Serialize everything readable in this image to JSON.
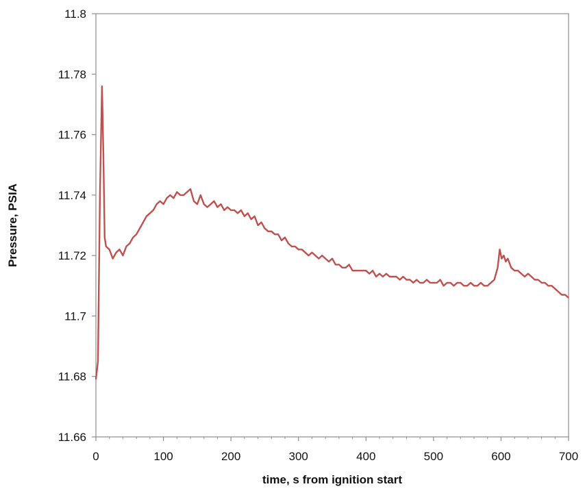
{
  "chart_data": {
    "type": "line",
    "title": "",
    "xlabel": "time, s from ignition start",
    "ylabel": "Pressure, PSIA",
    "xlim": [
      0,
      700
    ],
    "ylim": [
      11.66,
      11.8
    ],
    "x_ticks": [
      0,
      100,
      200,
      300,
      400,
      500,
      600,
      700
    ],
    "x_tick_labels": [
      "0",
      "100",
      "200",
      "300",
      "400",
      "500",
      "600",
      "700"
    ],
    "y_ticks": [
      11.66,
      11.68,
      11.7,
      11.72,
      11.74,
      11.76,
      11.78,
      11.8
    ],
    "y_tick_labels": [
      "11.66",
      "11.68",
      "11.7",
      "11.72",
      "11.74",
      "11.76",
      "11.78",
      "11.8"
    ],
    "grid": false,
    "legend": "none",
    "line_color": "#c0504d",
    "series": [
      {
        "x": [
          0,
          3,
          6,
          9,
          11,
          13,
          15,
          20,
          25,
          30,
          35,
          40,
          45,
          50,
          55,
          60,
          65,
          70,
          75,
          80,
          85,
          90,
          95,
          100,
          105,
          110,
          115,
          120,
          125,
          130,
          135,
          140,
          145,
          150,
          155,
          160,
          165,
          170,
          175,
          180,
          185,
          190,
          195,
          200,
          205,
          210,
          215,
          220,
          225,
          230,
          235,
          240,
          245,
          250,
          255,
          260,
          265,
          270,
          275,
          280,
          285,
          290,
          295,
          300,
          305,
          310,
          315,
          320,
          325,
          330,
          335,
          340,
          345,
          350,
          355,
          360,
          365,
          370,
          375,
          380,
          385,
          390,
          395,
          400,
          405,
          410,
          415,
          420,
          425,
          430,
          435,
          440,
          445,
          450,
          455,
          460,
          465,
          470,
          475,
          480,
          485,
          490,
          495,
          500,
          505,
          510,
          515,
          520,
          525,
          530,
          535,
          540,
          545,
          550,
          555,
          560,
          565,
          570,
          575,
          580,
          585,
          590,
          595,
          598,
          601,
          604,
          607,
          610,
          615,
          620,
          625,
          630,
          635,
          640,
          645,
          650,
          655,
          660,
          665,
          670,
          675,
          680,
          685,
          690,
          695,
          700
        ],
        "y": [
          11.679,
          11.685,
          11.74,
          11.776,
          11.755,
          11.726,
          11.723,
          11.722,
          11.719,
          11.721,
          11.722,
          11.72,
          11.723,
          11.724,
          11.726,
          11.727,
          11.729,
          11.731,
          11.733,
          11.734,
          11.735,
          11.737,
          11.738,
          11.737,
          11.739,
          11.74,
          11.739,
          11.741,
          11.74,
          11.74,
          11.741,
          11.742,
          11.738,
          11.737,
          11.74,
          11.737,
          11.736,
          11.737,
          11.738,
          11.736,
          11.737,
          11.735,
          11.736,
          11.735,
          11.735,
          11.734,
          11.735,
          11.733,
          11.734,
          11.732,
          11.733,
          11.73,
          11.731,
          11.729,
          11.728,
          11.728,
          11.727,
          11.727,
          11.725,
          11.726,
          11.724,
          11.723,
          11.723,
          11.722,
          11.722,
          11.721,
          11.72,
          11.721,
          11.72,
          11.719,
          11.72,
          11.719,
          11.718,
          11.719,
          11.717,
          11.717,
          11.716,
          11.716,
          11.717,
          11.715,
          11.715,
          11.715,
          11.715,
          11.715,
          11.714,
          11.715,
          11.713,
          11.714,
          11.713,
          11.714,
          11.713,
          11.713,
          11.713,
          11.712,
          11.713,
          11.712,
          11.712,
          11.711,
          11.712,
          11.711,
          11.711,
          11.712,
          11.711,
          11.711,
          11.711,
          11.712,
          11.71,
          11.711,
          11.711,
          11.71,
          11.711,
          11.711,
          11.71,
          11.71,
          11.711,
          11.71,
          11.71,
          11.711,
          11.71,
          11.71,
          11.711,
          11.712,
          11.716,
          11.722,
          11.719,
          11.72,
          11.718,
          11.719,
          11.716,
          11.715,
          11.715,
          11.714,
          11.713,
          11.714,
          11.713,
          11.712,
          11.712,
          11.711,
          11.711,
          11.71,
          11.71,
          11.709,
          11.708,
          11.707,
          11.707,
          11.706
        ]
      }
    ]
  }
}
